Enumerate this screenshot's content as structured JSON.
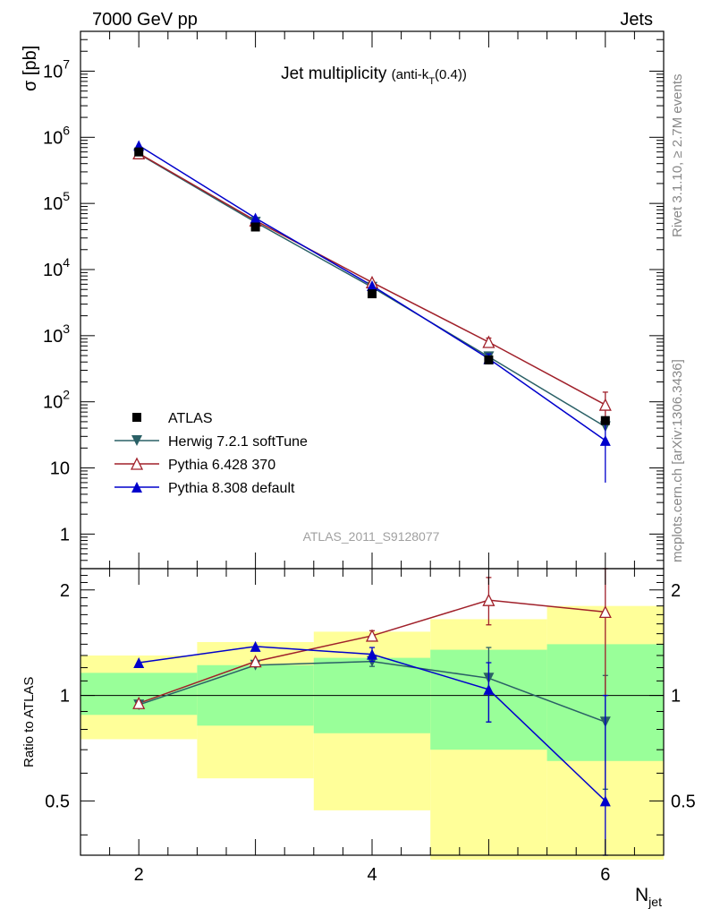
{
  "header": {
    "energy_label": "7000 GeV pp",
    "process_label": "Jets"
  },
  "side_labels": {
    "rivet": "Rivet 3.1.10, ≥ 2.7M events",
    "mcplots": "mcplots.cern.ch [arXiv:1306.3436]"
  },
  "chart_data": {
    "type": "scatter",
    "title": "Jet multiplicity",
    "title_suffix": "(anti-k",
    "title_sub": "T",
    "title_suffix_end": "(0.4))",
    "analysis_label": "ATLAS_2011_S9128077",
    "xlabel": "N",
    "xlabel_sub": "jet",
    "ylabel": "σ [pb]",
    "ratio_ylabel": "Ratio to ATLAS",
    "xlim": [
      1.5,
      6.5
    ],
    "ylim": [
      0.3,
      40000000
    ],
    "yscale": "log",
    "ratio_ylim": [
      0.35,
      2.3
    ],
    "ratio_yscale": "log",
    "x_ticks": [
      2,
      4,
      6
    ],
    "x_tick_labels": [
      "2",
      "4",
      "6"
    ],
    "y_ticks": [
      1,
      10,
      100,
      1000,
      10000,
      100000,
      1000000,
      10000000
    ],
    "y_tick_labels": [
      {
        "base": "1",
        "exp": ""
      },
      {
        "base": "10",
        "exp": ""
      },
      {
        "base": "10",
        "exp": "2"
      },
      {
        "base": "10",
        "exp": "3"
      },
      {
        "base": "10",
        "exp": "4"
      },
      {
        "base": "10",
        "exp": "5"
      },
      {
        "base": "10",
        "exp": "6"
      },
      {
        "base": "10",
        "exp": "7"
      }
    ],
    "ratio_y_ticks": [
      0.5,
      1,
      2
    ],
    "ratio_y_tick_labels": [
      "0.5",
      "1",
      "2"
    ],
    "legend_position": "bottom-left",
    "bands": [
      {
        "x_low": 1.5,
        "x_high": 2.5,
        "yellow": [
          0.75,
          1.3
        ],
        "green": [
          0.88,
          1.16
        ]
      },
      {
        "x_low": 2.5,
        "x_high": 3.5,
        "yellow": [
          0.58,
          1.42
        ],
        "green": [
          0.82,
          1.22
        ]
      },
      {
        "x_low": 3.5,
        "x_high": 4.5,
        "yellow": [
          0.47,
          1.52
        ],
        "green": [
          0.78,
          1.28
        ]
      },
      {
        "x_low": 4.5,
        "x_high": 5.5,
        "yellow": [
          0.34,
          1.65
        ],
        "green": [
          0.7,
          1.35
        ]
      },
      {
        "x_low": 5.5,
        "x_high": 6.5,
        "yellow": [
          0.34,
          1.8
        ],
        "green": [
          0.65,
          1.4
        ]
      }
    ],
    "series": [
      {
        "name": "ATLAS",
        "marker": "square",
        "color": "#000000",
        "x": [
          2,
          3,
          4,
          5,
          6
        ],
        "y": [
          600000,
          44000,
          4300,
          430,
          52
        ],
        "ratio": [
          1,
          1,
          1,
          1,
          1
        ]
      },
      {
        "name": "Herwig 7.2.1 softTune",
        "marker": "triangle-down",
        "color": "#2a6066",
        "x": [
          2,
          3,
          4,
          5,
          6
        ],
        "y": [
          560000,
          52000,
          5400,
          480,
          42
        ],
        "y_err": [
          0,
          0,
          0,
          80,
          0
        ],
        "ratio": [
          0.94,
          1.22,
          1.25,
          1.12,
          0.84
        ],
        "ratio_err_low": [
          0,
          0,
          0.04,
          0.28,
          0.3
        ],
        "ratio_err_high": [
          0,
          0,
          0.04,
          0.25,
          0.3
        ]
      },
      {
        "name": "Pythia 6.428 370",
        "marker": "triangle-open",
        "color": "#a0202a",
        "x": [
          2,
          3,
          4,
          5,
          6
        ],
        "y": [
          570000,
          55000,
          6400,
          800,
          90
        ],
        "y_err": [
          0,
          0,
          0,
          120,
          50
        ],
        "ratio": [
          0.95,
          1.25,
          1.48,
          1.87,
          1.73
        ],
        "ratio_err_low": [
          0,
          0,
          0.05,
          0.28,
          0.73
        ],
        "ratio_err_high": [
          0,
          0,
          0.05,
          0.3,
          0.6
        ]
      },
      {
        "name": "Pythia 8.308 default",
        "marker": "triangle-up",
        "color": "#0000cc",
        "x": [
          2,
          3,
          4,
          5,
          6
        ],
        "y": [
          750000,
          60000,
          5700,
          450,
          26
        ],
        "y_err": [
          0,
          0,
          0,
          80,
          20
        ],
        "ratio": [
          1.24,
          1.38,
          1.31,
          1.04,
          0.5
        ],
        "ratio_err_low": [
          0,
          0,
          0.06,
          0.2,
          0.15
        ],
        "ratio_err_high": [
          0,
          0,
          0.06,
          0.2,
          0.5
        ]
      }
    ]
  }
}
